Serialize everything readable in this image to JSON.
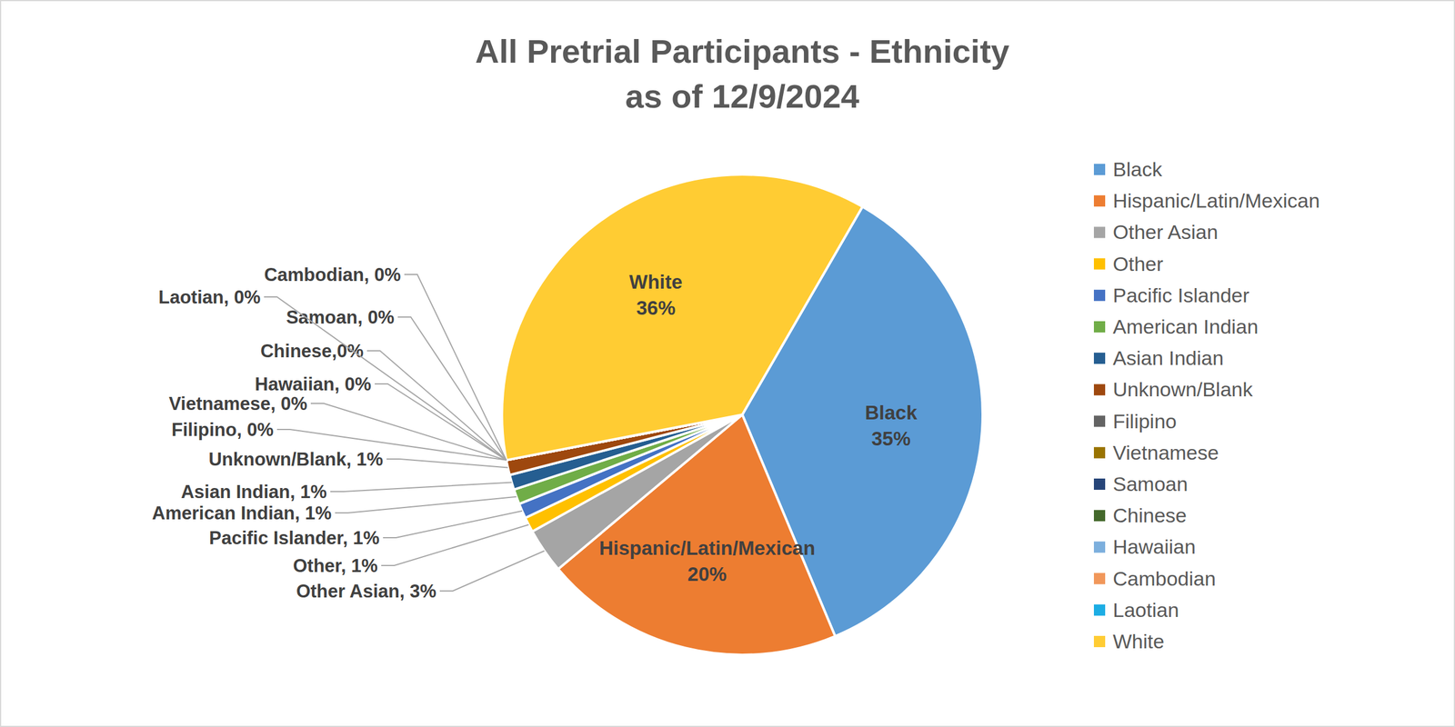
{
  "chart_data": {
    "type": "pie",
    "title": "All Pretrial Participants - Ethnicity",
    "subtitle": "as of 12/9/2024",
    "categories": [
      "Black",
      "Hispanic/Latin/Mexican",
      "Other Asian",
      "Other",
      "Pacific Islander",
      "American Indian",
      "Asian Indian",
      "Unknown/Blank",
      "Filipino",
      "Vietnamese",
      "Samoan",
      "Chinese",
      "Hawaiian",
      "Cambodian",
      "Laotian",
      "White"
    ],
    "values": [
      35,
      20,
      3,
      1,
      1,
      1,
      1,
      1,
      0,
      0,
      0,
      0,
      0,
      0,
      0,
      36
    ],
    "value_labels": [
      "35%",
      "20%",
      "Other Asian, 3%",
      "Other, 1%",
      "Pacific Islander, 1%",
      "American Indian, 1%",
      "Asian Indian, 1%",
      "Unknown/Blank, 1%",
      "Filipino, 0%",
      "Vietnamese, 0%",
      "Samoan, 0%",
      "Chinese,0%",
      "Hawaiian, 0%",
      "Cambodian, 0%",
      "Laotian, 0%",
      "36%"
    ],
    "colors": [
      "#5b9bd5",
      "#ed7d31",
      "#a5a5a5",
      "#ffc000",
      "#4472c4",
      "#70ad47",
      "#255e91",
      "#9e480e",
      "#636363",
      "#997300",
      "#264478",
      "#43682b",
      "#7cafdd",
      "#f1975a",
      "#1cade4",
      "#ffcc33"
    ],
    "data_labels": true,
    "legend": "right"
  }
}
